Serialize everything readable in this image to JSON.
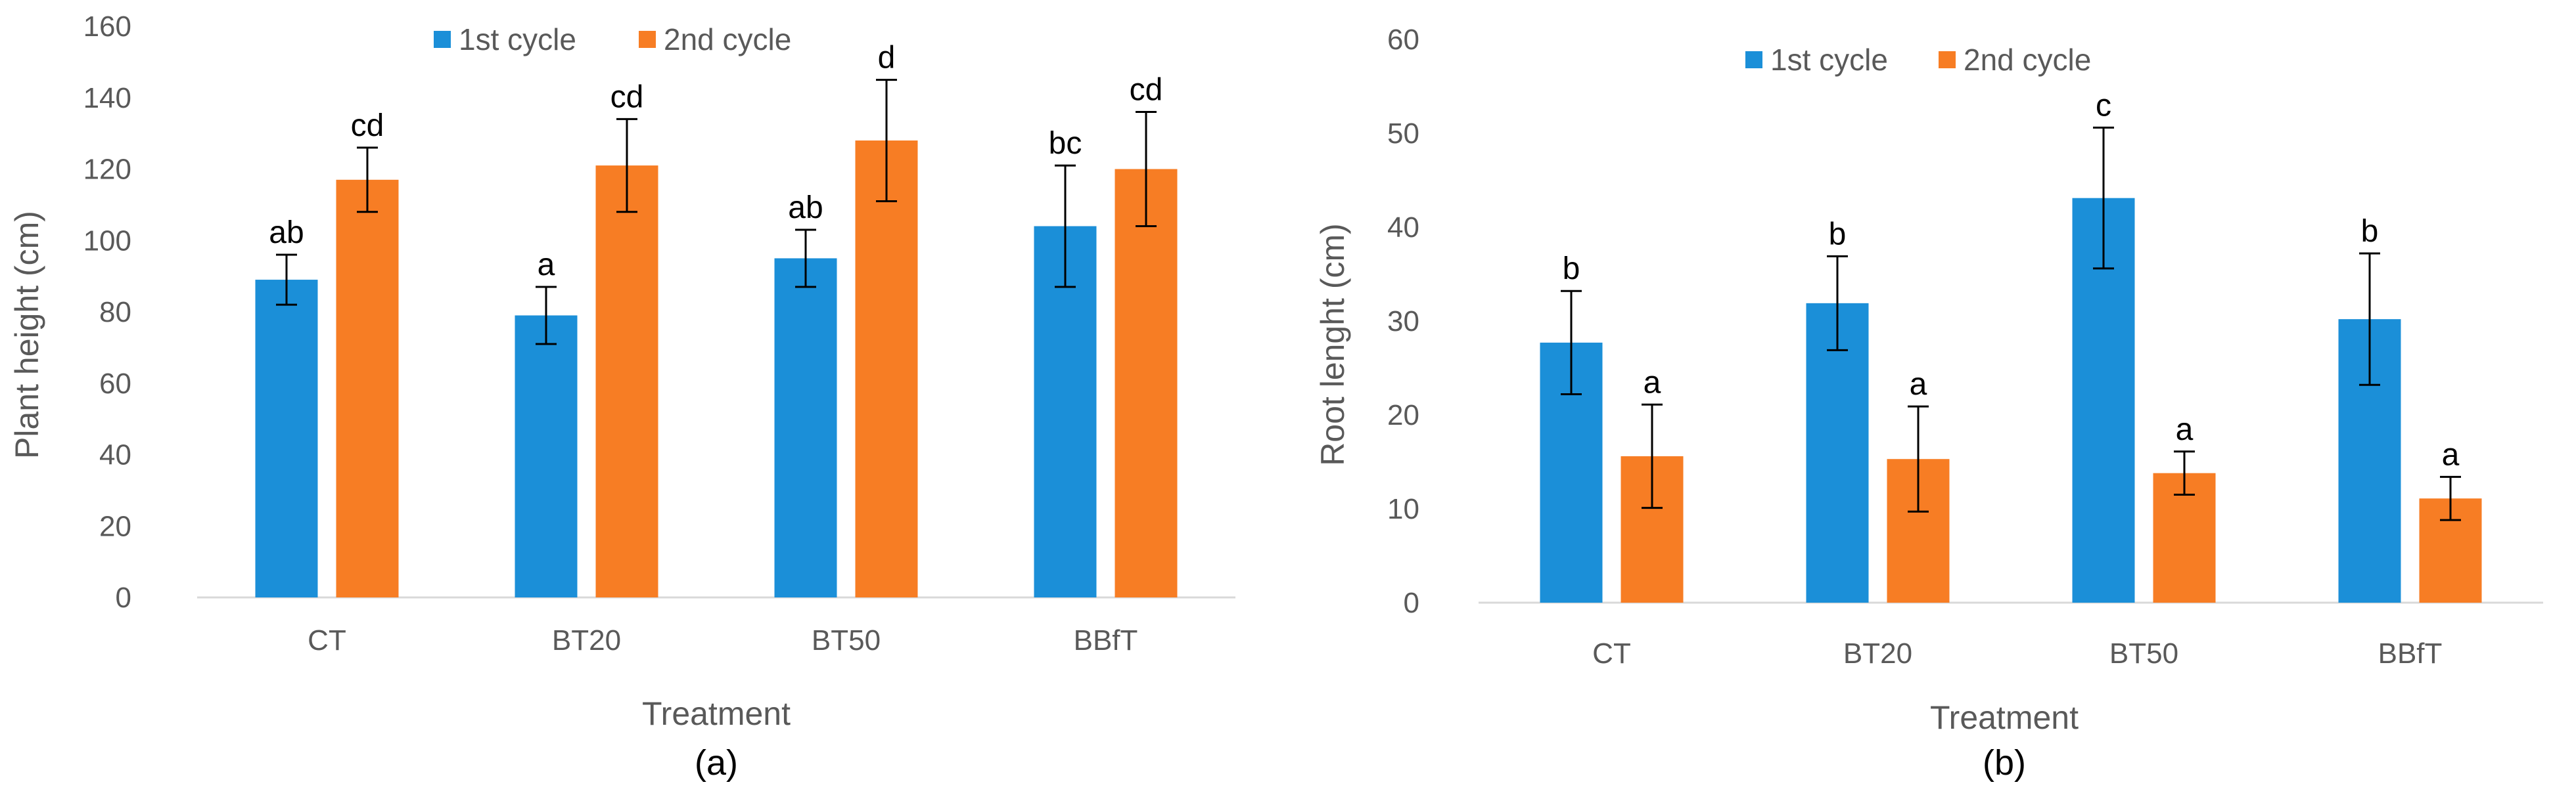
{
  "chart_data": [
    {
      "type": "bar",
      "panel_label": "(a)",
      "categories": [
        "CT",
        "BT20",
        "BT50",
        "BBfT"
      ],
      "series": [
        {
          "name": "1st cycle",
          "color": "#1B8FD8",
          "values": [
            89,
            79,
            95,
            104
          ],
          "errors": [
            7,
            8,
            8,
            17
          ],
          "labels": [
            "ab",
            "a",
            "ab",
            "bc"
          ]
        },
        {
          "name": "2nd cycle",
          "color": "#F77D24",
          "values": [
            117,
            121,
            128,
            120
          ],
          "errors": [
            9,
            13,
            17,
            16
          ],
          "labels": [
            "cd",
            "cd",
            "d",
            "cd"
          ]
        }
      ],
      "xlabel": "Treatment",
      "ylabel": "Plant height (cm)",
      "ylim": [
        0,
        160
      ],
      "yticks": [
        0,
        20,
        40,
        60,
        80,
        100,
        120,
        140,
        160
      ],
      "legend": "top-center"
    },
    {
      "type": "bar",
      "panel_label": "(b)",
      "categories": [
        "CT",
        "BT20",
        "BT50",
        "BBfT"
      ],
      "series": [
        {
          "name": "1st cycle",
          "color": "#1B8FD8",
          "values": [
            27.7,
            31.9,
            43.1,
            30.2
          ],
          "errors": [
            5.5,
            5,
            7.5,
            7
          ],
          "labels": [
            "b",
            "b",
            "c",
            "b"
          ]
        },
        {
          "name": "2nd cycle",
          "color": "#F77D24",
          "values": [
            15.6,
            15.3,
            13.8,
            11.1
          ],
          "errors": [
            5.5,
            5.6,
            2.3,
            2.3
          ],
          "labels": [
            "a",
            "a",
            "a",
            "a"
          ]
        }
      ],
      "xlabel": "Treatment",
      "ylabel": "Root lenght (cm)",
      "ylim": [
        0,
        60
      ],
      "yticks": [
        0,
        10,
        20,
        30,
        40,
        50,
        60
      ],
      "legend": "top-center"
    }
  ]
}
